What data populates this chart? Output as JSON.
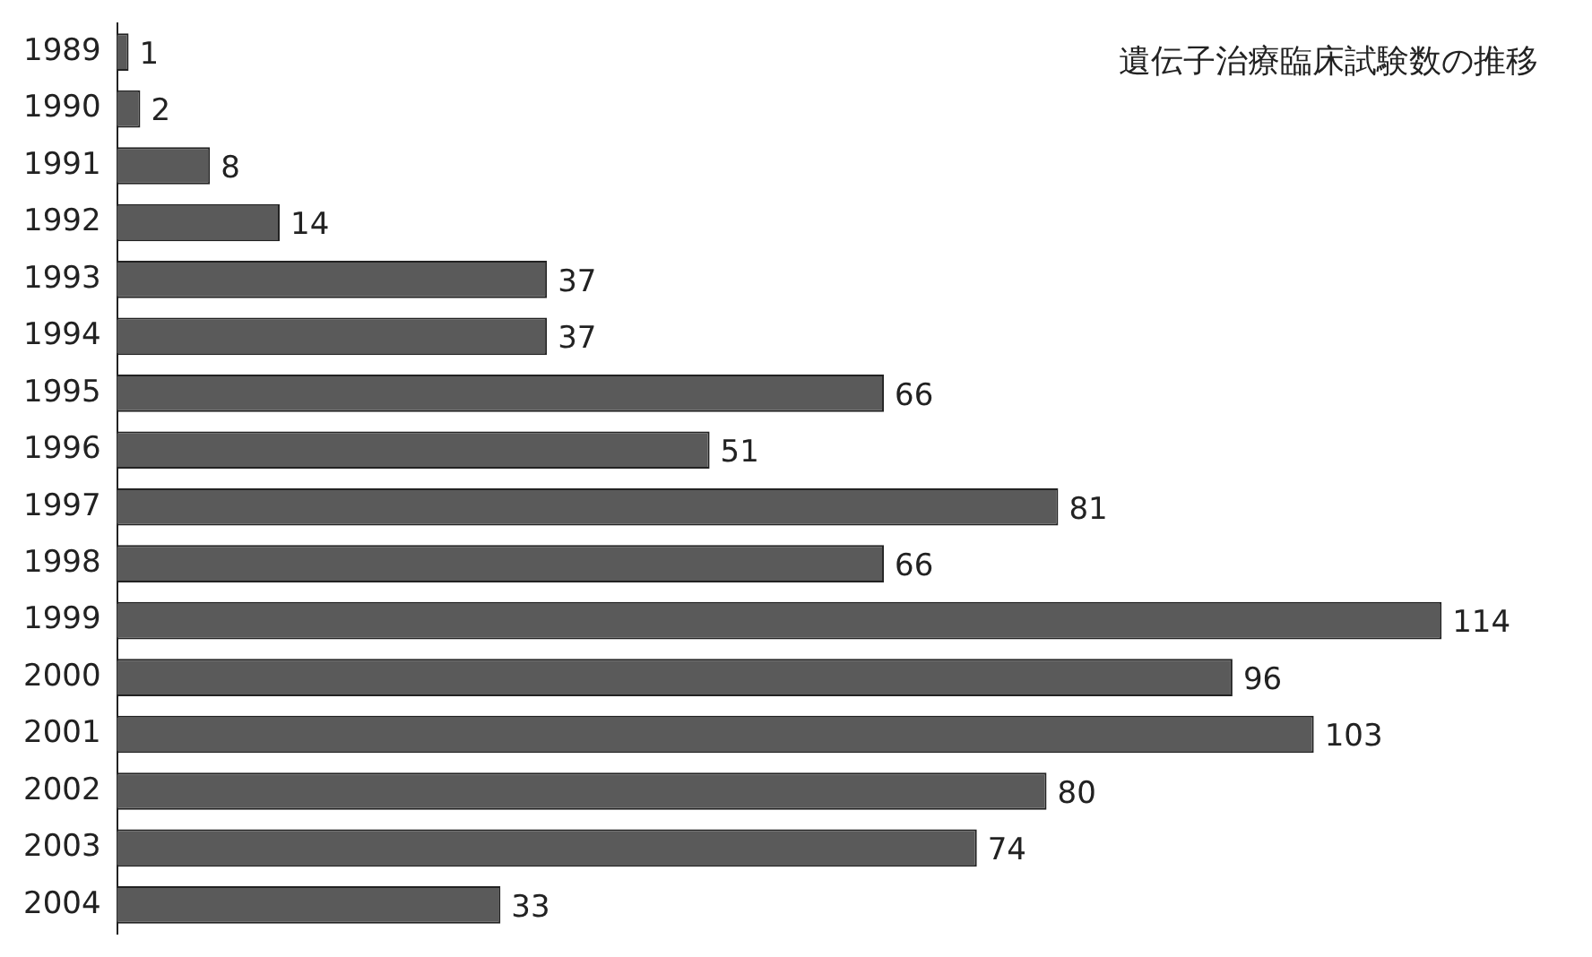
{
  "chart_data": {
    "type": "bar",
    "orientation": "horizontal",
    "title": "遺伝子治療臨床試験数の推移",
    "categories": [
      "1989",
      "1990",
      "1991",
      "1992",
      "1993",
      "1994",
      "1995",
      "1996",
      "1997",
      "1998",
      "1999",
      "2000",
      "2001",
      "2002",
      "2003",
      "2004"
    ],
    "values": [
      1,
      2,
      8,
      14,
      37,
      37,
      66,
      51,
      81,
      66,
      114,
      96,
      103,
      80,
      74,
      33
    ],
    "color": "#5a5a5a",
    "data_labels": true,
    "legend": false
  }
}
